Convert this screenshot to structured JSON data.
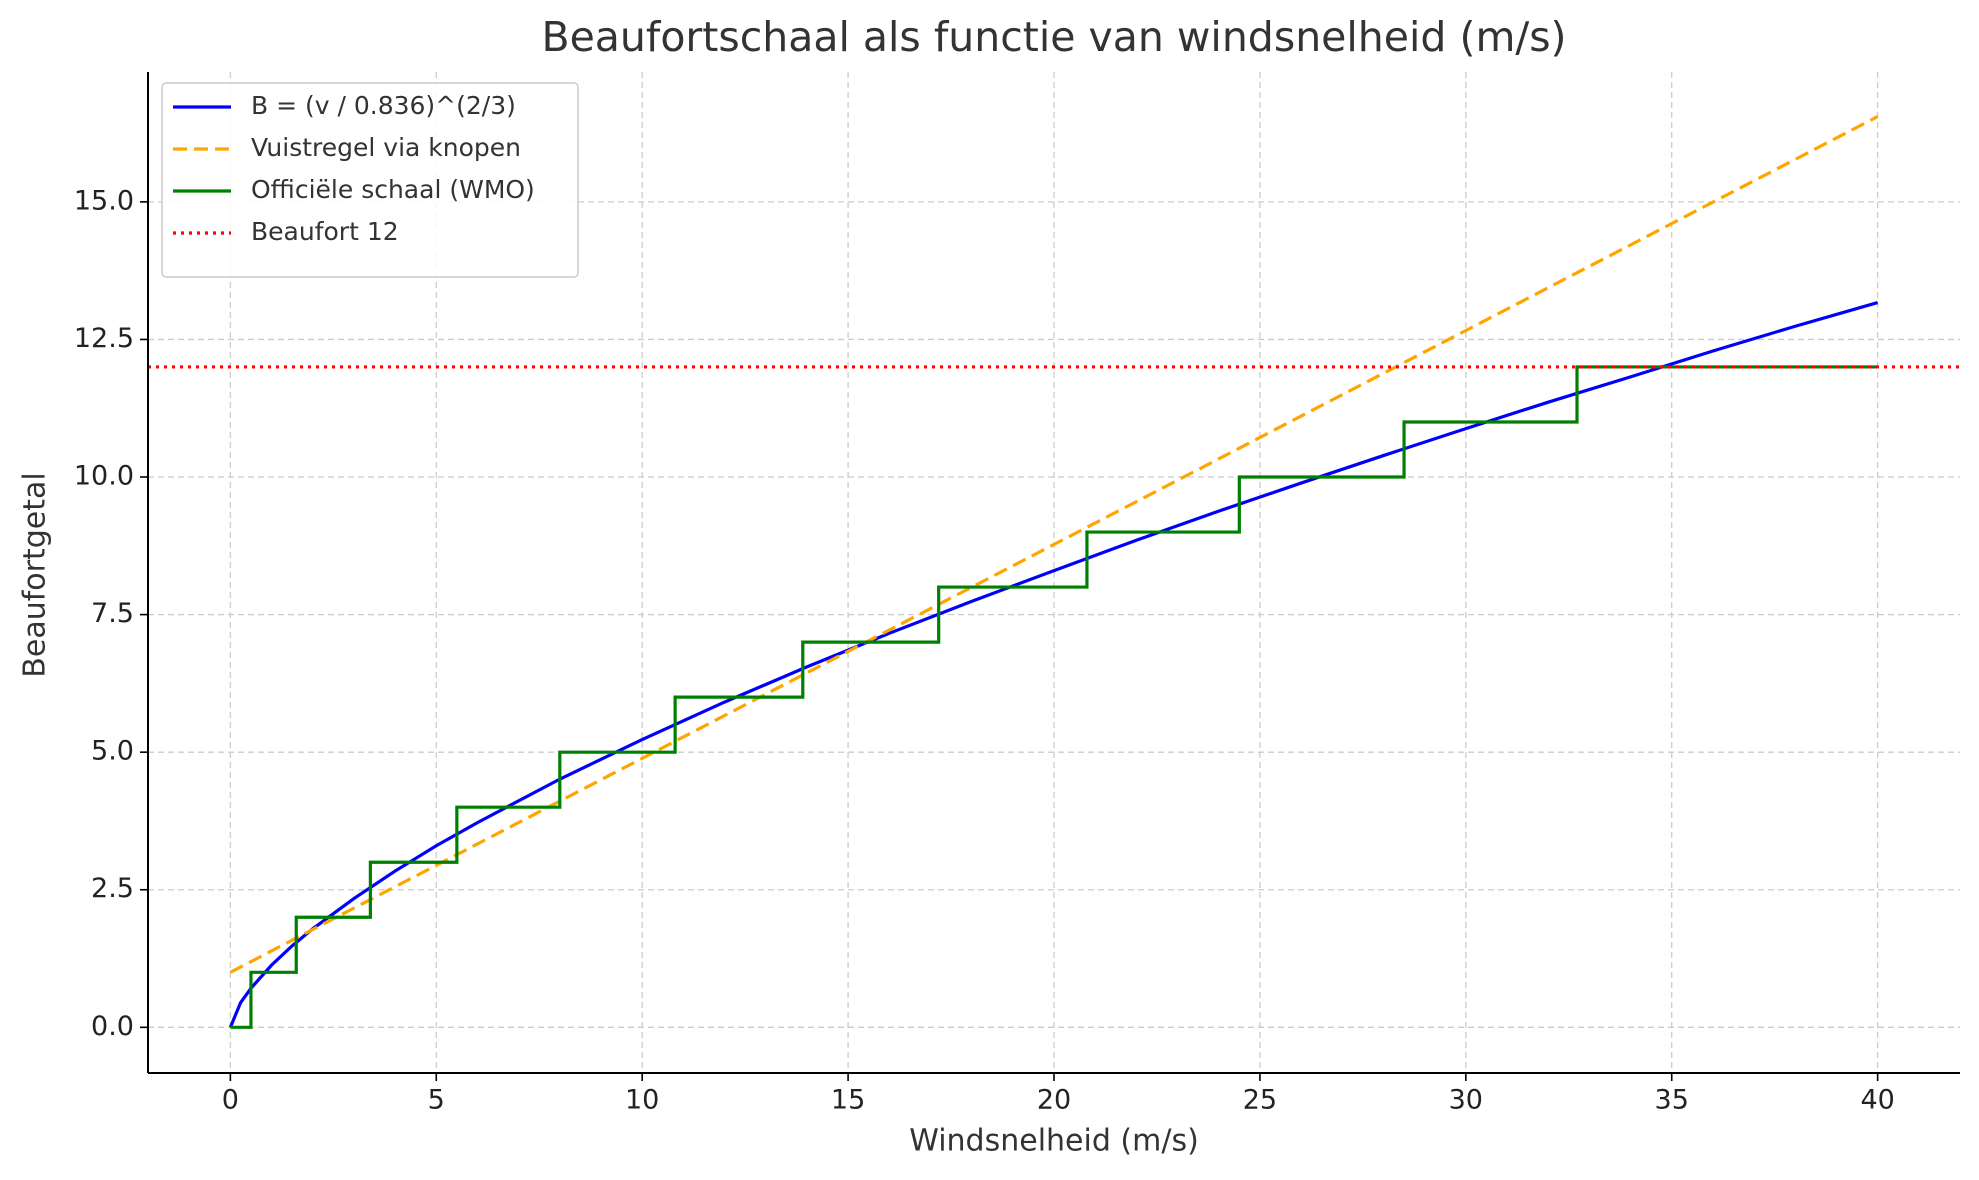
{
  "chart_data": {
    "type": "line",
    "title": "Beaufortschaal als functie van windsnelheid (m/s)",
    "xlabel": "Windsnelheid (m/s)",
    "ylabel": "Beaufortgetal",
    "xlim": [
      -2,
      42
    ],
    "ylim": [
      -0.83,
      17.36
    ],
    "xticks": [
      0,
      5,
      10,
      15,
      20,
      25,
      30,
      35,
      40
    ],
    "yticks": [
      {
        "value": 0,
        "label": "0.0"
      },
      {
        "value": 2.5,
        "label": "2.5"
      },
      {
        "value": 5,
        "label": "5.0"
      },
      {
        "value": 7.5,
        "label": "7.5"
      },
      {
        "value": 10,
        "label": "10.0"
      },
      {
        "value": 12.5,
        "label": "12.5"
      },
      {
        "value": 15,
        "label": "15.0"
      }
    ],
    "grid": true,
    "legend": "upper left",
    "series": [
      {
        "name": "B = (v / 0.836)^(2/3)",
        "color": "#0000ff",
        "style": "solid",
        "x": [
          0,
          0.25,
          0.5,
          1,
          1.5,
          2,
          3,
          4,
          5,
          6,
          8,
          10,
          12,
          14,
          16,
          18,
          20,
          22,
          24,
          26,
          28,
          30,
          32,
          34,
          36,
          38,
          40
        ],
        "values": [
          0,
          0.45,
          0.71,
          1.13,
          1.48,
          1.79,
          2.34,
          2.84,
          3.3,
          3.72,
          4.51,
          5.23,
          5.91,
          6.55,
          7.16,
          7.74,
          8.3,
          8.85,
          9.38,
          9.89,
          10.39,
          10.88,
          11.36,
          11.82,
          12.29,
          12.74,
          13.17
        ]
      },
      {
        "name": "Vuistregel via knopen",
        "color": "#ffa500",
        "style": "dashed",
        "x": [
          0,
          40
        ],
        "values": [
          1,
          16.55
        ]
      },
      {
        "name": "Officiële schaal (WMO)",
        "color": "#008000",
        "style": "step",
        "x": [
          0,
          0.5,
          1.6,
          3.4,
          5.5,
          8,
          10.8,
          13.9,
          17.2,
          20.8,
          24.5,
          28.5,
          32.7,
          40
        ],
        "values": [
          0,
          1,
          2,
          3,
          4,
          5,
          6,
          7,
          8,
          9,
          10,
          11,
          12,
          12
        ]
      },
      {
        "name": "Beaufort 12",
        "color": "#ff0000",
        "style": "dotted",
        "hline": 12
      }
    ]
  }
}
